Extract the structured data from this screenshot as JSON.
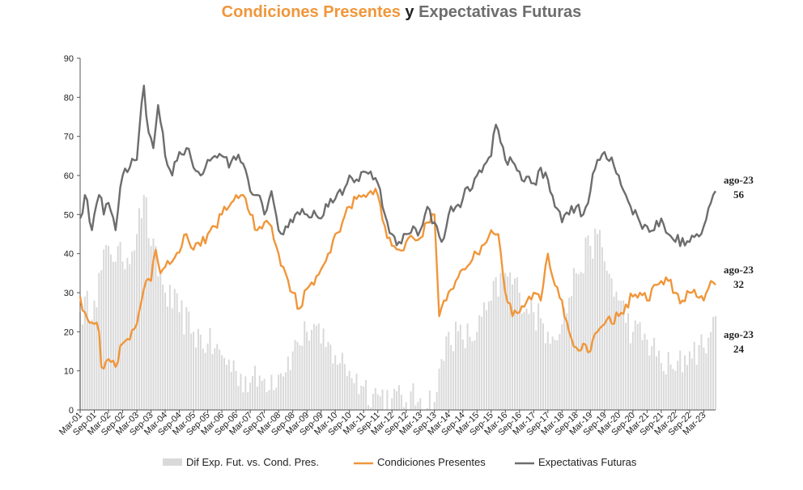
{
  "title": {
    "part1": "Condiciones Presentes",
    "part2": " y ",
    "part3": "Expectativas Futuras"
  },
  "colors": {
    "present": "#f0963a",
    "expect": "#6d6d6d",
    "diff": "#d9d9d9"
  },
  "end_labels": {
    "expect": {
      "date": "ago-23",
      "value": "56"
    },
    "present": {
      "date": "ago-23",
      "value": "32"
    },
    "diff": {
      "date": "ago-23",
      "value": "24"
    }
  },
  "chart_data": {
    "type": "line",
    "x_start": "Mar-01",
    "x_end": "ago-23",
    "ylim": [
      0,
      90
    ],
    "y_ticks": [
      "0",
      "10",
      "20",
      "30",
      "40",
      "50",
      "60",
      "70",
      "80",
      "90"
    ],
    "x_ticks": [
      "Mar-01",
      "Sep-01",
      "Mar-02",
      "Sep-02",
      "Mar-03",
      "Sep-03",
      "Mar-04",
      "Sep-04",
      "Mar-05",
      "Sep-05",
      "Mar-06",
      "Sep-06",
      "Mar-07",
      "Sep-07",
      "Mar-08",
      "Sep-08",
      "Mar-09",
      "Sep-09",
      "Mar-10",
      "Sep-10",
      "Mar-11",
      "Sep-11",
      "Mar-12",
      "Sep-12",
      "Mar-13",
      "Sep-13",
      "Mar-14",
      "Sep-14",
      "Mar-15",
      "Sep-15",
      "Mar-16",
      "Sep-16",
      "Mar-17",
      "Sep-17",
      "Mar-18",
      "Sep-18",
      "Mar-19",
      "Sep-19",
      "Mar-20",
      "Sep-20",
      "Mar-21",
      "Sep-21",
      "Mar-22",
      "Sep-22",
      "Mar-23"
    ],
    "grid": false,
    "legend_position": "bottom",
    "series": [
      {
        "name": "Dif Exp. Fut. vs. Cond. Pres.",
        "kind": "bar",
        "anchors": [
          [
            "Mar-01",
            25
          ],
          [
            "Sep-01",
            28
          ],
          [
            "Mar-02",
            42
          ],
          [
            "Sep-02",
            38
          ],
          [
            "Mar-03",
            45
          ],
          [
            "Jun-03",
            55
          ],
          [
            "Sep-03",
            42
          ],
          [
            "Mar-04",
            30
          ],
          [
            "Sep-04",
            25
          ],
          [
            "Mar-05",
            20
          ],
          [
            "Sep-05",
            17
          ],
          [
            "Mar-06",
            14
          ],
          [
            "Sep-06",
            10
          ],
          [
            "Mar-07",
            7
          ],
          [
            "Sep-07",
            8
          ],
          [
            "Mar-08",
            9
          ],
          [
            "Sep-08",
            15
          ],
          [
            "Mar-09",
            20
          ],
          [
            "Jun-09",
            22
          ],
          [
            "Sep-09",
            17
          ],
          [
            "Mar-10",
            14
          ],
          [
            "Sep-10",
            10
          ],
          [
            "Mar-11",
            6
          ],
          [
            "Sep-11",
            4
          ],
          [
            "Mar-12",
            3
          ],
          [
            "Sep-12",
            2
          ],
          [
            "Mar-13",
            3
          ],
          [
            "Sep-13",
            2
          ],
          [
            "Mar-14",
            20
          ],
          [
            "Sep-14",
            18
          ],
          [
            "Mar-15",
            20
          ],
          [
            "Sep-15",
            28
          ],
          [
            "Mar-16",
            35
          ],
          [
            "Sep-16",
            30
          ],
          [
            "Mar-17",
            25
          ],
          [
            "Sep-17",
            20
          ],
          [
            "Mar-18",
            22
          ],
          [
            "Sep-18",
            35
          ],
          [
            "Mar-19",
            42
          ],
          [
            "Jun-19",
            45
          ],
          [
            "Sep-19",
            38
          ],
          [
            "Mar-20",
            28
          ],
          [
            "Sep-20",
            20
          ],
          [
            "Mar-21",
            18
          ],
          [
            "Sep-21",
            12
          ],
          [
            "Mar-22",
            10
          ],
          [
            "Sep-22",
            15
          ],
          [
            "Mar-23",
            16
          ],
          [
            "Jun-23",
            20
          ],
          [
            "ago-23",
            24
          ]
        ]
      },
      {
        "name": "Condiciones Presentes",
        "kind": "line",
        "anchors": [
          [
            "Mar-01",
            29
          ],
          [
            "May-01",
            25
          ],
          [
            "Sep-01",
            22
          ],
          [
            "Nov-01",
            20
          ],
          [
            "Dec-01",
            11
          ],
          [
            "Mar-02",
            13
          ],
          [
            "Jun-02",
            11
          ],
          [
            "Sep-02",
            17
          ],
          [
            "Dec-02",
            18
          ],
          [
            "Mar-03",
            22
          ],
          [
            "Jun-03",
            31
          ],
          [
            "Sep-03",
            33
          ],
          [
            "Nov-03",
            41
          ],
          [
            "Jan-04",
            35
          ],
          [
            "Jun-04",
            38
          ],
          [
            "Dec-04",
            45
          ],
          [
            "Mar-05",
            41
          ],
          [
            "Jun-05",
            42
          ],
          [
            "Sep-05",
            45
          ],
          [
            "Dec-05",
            47
          ],
          [
            "Mar-06",
            50
          ],
          [
            "Jun-06",
            52
          ],
          [
            "Sep-06",
            55
          ],
          [
            "Dec-06",
            55
          ],
          [
            "Mar-07",
            50
          ],
          [
            "Jun-07",
            46
          ],
          [
            "Sep-07",
            48
          ],
          [
            "Dec-07",
            47
          ],
          [
            "Mar-08",
            40
          ],
          [
            "Jun-08",
            35
          ],
          [
            "Sep-08",
            30
          ],
          [
            "Dec-08",
            26
          ],
          [
            "Mar-09",
            31
          ],
          [
            "Jun-09",
            32
          ],
          [
            "Sep-09",
            36
          ],
          [
            "Dec-09",
            40
          ],
          [
            "Mar-10",
            45
          ],
          [
            "Jun-10",
            48
          ],
          [
            "Sep-10",
            52
          ],
          [
            "Dec-10",
            54
          ],
          [
            "Mar-11",
            55
          ],
          [
            "Jun-11",
            56
          ],
          [
            "Sep-11",
            55
          ],
          [
            "Dec-11",
            47
          ],
          [
            "Mar-12",
            42
          ],
          [
            "Jun-12",
            41
          ],
          [
            "Sep-12",
            43
          ],
          [
            "Dec-12",
            44
          ],
          [
            "Mar-13",
            44
          ],
          [
            "Jun-13",
            48
          ],
          [
            "Sep-13",
            50
          ],
          [
            "Nov-13",
            24
          ],
          [
            "Jan-14",
            28
          ],
          [
            "Jun-14",
            33
          ],
          [
            "Sep-14",
            36
          ],
          [
            "Mar-15",
            40
          ],
          [
            "Sep-15",
            46
          ],
          [
            "Dec-15",
            45
          ],
          [
            "Mar-16",
            30
          ],
          [
            "Jun-16",
            24
          ],
          [
            "Sep-16",
            25
          ],
          [
            "Mar-17",
            30
          ],
          [
            "Jun-17",
            28
          ],
          [
            "Sep-17",
            40
          ],
          [
            "Nov-17",
            34
          ],
          [
            "Mar-18",
            28
          ],
          [
            "Jun-18",
            20
          ],
          [
            "Sep-18",
            16
          ],
          [
            "Dec-18",
            17
          ],
          [
            "Mar-19",
            15
          ],
          [
            "Jun-19",
            20
          ],
          [
            "Sep-19",
            22
          ],
          [
            "Mar-20",
            24
          ],
          [
            "Jun-20",
            27
          ],
          [
            "Sep-20",
            29
          ],
          [
            "Dec-20",
            30
          ],
          [
            "Mar-21",
            28
          ],
          [
            "Jun-21",
            32
          ],
          [
            "Sep-21",
            33
          ],
          [
            "Dec-21",
            33
          ],
          [
            "Mar-22",
            30
          ],
          [
            "Jun-22",
            28
          ],
          [
            "Sep-22",
            30
          ],
          [
            "Dec-22",
            29
          ],
          [
            "Mar-23",
            28
          ],
          [
            "Jun-23",
            33
          ],
          [
            "ago-23",
            32
          ]
        ]
      },
      {
        "name": "Expectativas Futuras",
        "kind": "line",
        "anchors": [
          [
            "Mar-01",
            49
          ],
          [
            "May-01",
            55
          ],
          [
            "Aug-01",
            46
          ],
          [
            "Sep-01",
            50
          ],
          [
            "Nov-01",
            55
          ],
          [
            "Jan-02",
            50
          ],
          [
            "Mar-02",
            53
          ],
          [
            "Jun-02",
            46
          ],
          [
            "Sep-02",
            60
          ],
          [
            "Dec-02",
            62
          ],
          [
            "Mar-03",
            64
          ],
          [
            "Jun-03",
            83
          ],
          [
            "Aug-03",
            71
          ],
          [
            "Oct-03",
            67
          ],
          [
            "Dec-03",
            78
          ],
          [
            "Mar-04",
            65
          ],
          [
            "Jun-04",
            60
          ],
          [
            "Sep-04",
            66
          ],
          [
            "Dec-04",
            67
          ],
          [
            "Mar-05",
            62
          ],
          [
            "Jun-05",
            60
          ],
          [
            "Sep-05",
            64
          ],
          [
            "Dec-05",
            65
          ],
          [
            "Mar-06",
            65
          ],
          [
            "Jun-06",
            62
          ],
          [
            "Sep-06",
            64
          ],
          [
            "Dec-06",
            63
          ],
          [
            "Mar-07",
            56
          ],
          [
            "Jun-07",
            55
          ],
          [
            "Sep-07",
            50
          ],
          [
            "Dec-07",
            56
          ],
          [
            "Mar-08",
            46
          ],
          [
            "Jun-08",
            47
          ],
          [
            "Sep-08",
            48
          ],
          [
            "Dec-08",
            50
          ],
          [
            "Mar-09",
            50
          ],
          [
            "Jun-09",
            51
          ],
          [
            "Sep-09",
            49
          ],
          [
            "Dec-09",
            52
          ],
          [
            "Mar-10",
            54
          ],
          [
            "Jun-10",
            55
          ],
          [
            "Sep-10",
            60
          ],
          [
            "Dec-10",
            59
          ],
          [
            "Mar-11",
            61
          ],
          [
            "Jun-11",
            61
          ],
          [
            "Sep-11",
            58
          ],
          [
            "Dec-11",
            50
          ],
          [
            "Mar-12",
            45
          ],
          [
            "Jun-12",
            43
          ],
          [
            "Sep-12",
            45
          ],
          [
            "Dec-12",
            47
          ],
          [
            "Mar-13",
            46
          ],
          [
            "Jun-13",
            52
          ],
          [
            "Sep-13",
            48
          ],
          [
            "Dec-13",
            43
          ],
          [
            "Mar-14",
            50
          ],
          [
            "Jun-14",
            52
          ],
          [
            "Sep-14",
            54
          ],
          [
            "Mar-15",
            60
          ],
          [
            "Sep-15",
            65
          ],
          [
            "Nov-15",
            73
          ],
          [
            "Mar-16",
            64
          ],
          [
            "Sep-16",
            61
          ],
          [
            "Mar-17",
            58
          ],
          [
            "Jun-17",
            62
          ],
          [
            "Sep-17",
            59
          ],
          [
            "Dec-17",
            52
          ],
          [
            "Mar-18",
            48
          ],
          [
            "Jun-18",
            50
          ],
          [
            "Sep-18",
            52
          ],
          [
            "Dec-18",
            50
          ],
          [
            "Mar-19",
            56
          ],
          [
            "Jun-19",
            64
          ],
          [
            "Sep-19",
            66
          ],
          [
            "Mar-20",
            60
          ],
          [
            "Jun-20",
            55
          ],
          [
            "Sep-20",
            50
          ],
          [
            "Mar-21",
            47
          ],
          [
            "Jun-21",
            46
          ],
          [
            "Sep-21",
            49
          ],
          [
            "Dec-21",
            45
          ],
          [
            "Mar-22",
            43
          ],
          [
            "Jun-22",
            44
          ],
          [
            "Sep-22",
            43
          ],
          [
            "Dec-22",
            45
          ],
          [
            "Mar-23",
            47
          ],
          [
            "Jun-23",
            53
          ],
          [
            "ago-23",
            56
          ]
        ]
      }
    ]
  }
}
